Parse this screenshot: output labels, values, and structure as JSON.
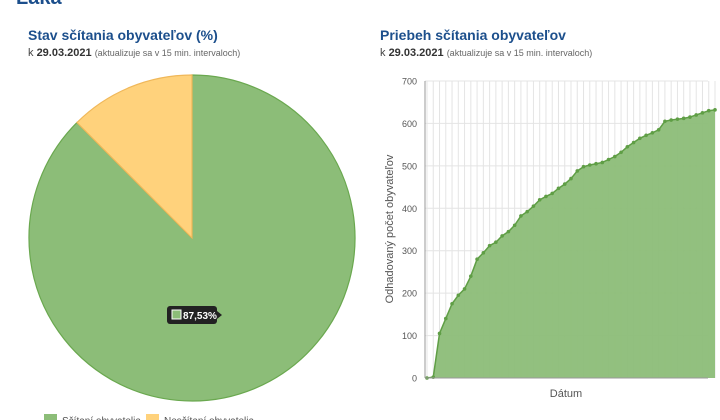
{
  "header": {
    "partial_title": "Láka"
  },
  "left_panel": {
    "title": "Stav sčítania obyvateľov (%)",
    "subtitle_prefix": "k",
    "date": "29.03.2021",
    "note": "(aktualizuje sa v 15 min. intervaloch)"
  },
  "right_panel": {
    "title": "Priebeh sčítania obyvateľov",
    "subtitle_prefix": "k",
    "date": "29.03.2021",
    "note": "(aktualizuje sa v 15 min. intervaloch)"
  },
  "colors": {
    "counted": "#8cbd78",
    "counted_stroke": "#6aa84f",
    "not_counted": "#ffd27c",
    "title": "#1c4f8c"
  },
  "chart_data": [
    {
      "type": "pie",
      "title": "Stav sčítania obyvateľov (%)",
      "slices": [
        {
          "label": "Sčítaní obyvatelia",
          "value": 87.53
        },
        {
          "label": "Nesčítaní obyvatelia",
          "value": 12.47
        }
      ],
      "tooltip": "87,53%",
      "legend": [
        "Sčítaní obyvatelia",
        "Nesčítaní obyvatelia"
      ],
      "legend_position": "bottom"
    },
    {
      "type": "area",
      "title": "Priebeh sčítania obyvateľov",
      "xlabel": "Dátum",
      "ylabel": "Odhadovaný počet obyvateľov",
      "ylim": [
        0,
        700
      ],
      "yticks": [
        0,
        100,
        200,
        300,
        400,
        500,
        600,
        700
      ],
      "grid": true,
      "values": [
        0,
        2,
        105,
        140,
        175,
        195,
        210,
        240,
        280,
        295,
        312,
        320,
        335,
        345,
        360,
        382,
        392,
        405,
        420,
        428,
        435,
        447,
        457,
        470,
        488,
        498,
        502,
        505,
        508,
        515,
        522,
        532,
        545,
        555,
        565,
        572,
        578,
        585,
        605,
        608,
        610,
        612,
        615,
        620,
        625,
        630,
        632
      ]
    }
  ]
}
